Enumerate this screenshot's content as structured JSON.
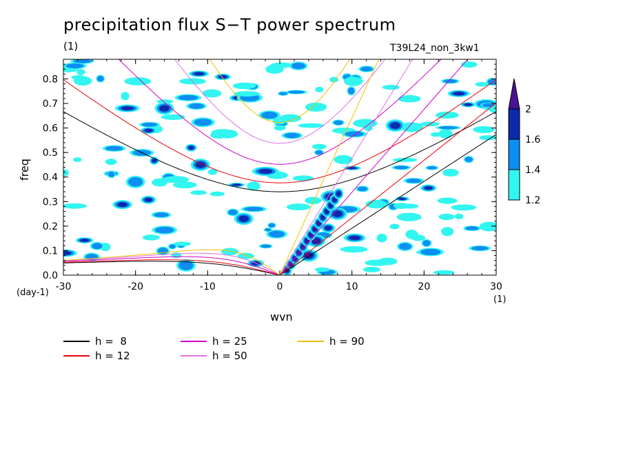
{
  "title": "precipitation flux S−T power spectrum",
  "units_top": "(1)",
  "run_label": "T39L24_non_3kw1",
  "x_units_label": "(1)",
  "y_units_label": "(day-1)",
  "chart_data": {
    "type": "heatmap",
    "xlabel": "wvn",
    "ylabel": "freq",
    "xlim": [
      -30,
      30
    ],
    "ylim": [
      0.0,
      0.88
    ],
    "x_ticks": [
      "-30",
      "-20",
      "-10",
      "0",
      "10",
      "20",
      "30"
    ],
    "y_ticks": [
      "0.0",
      "0.1",
      "0.2",
      "0.3",
      "0.4",
      "0.5",
      "0.6",
      "0.7",
      "0.8"
    ],
    "colorbar": {
      "levels": [
        1.2,
        1.4,
        1.6,
        2.0
      ],
      "tick_labels": [
        "1.2",
        "1.4",
        "1.6",
        "2"
      ],
      "colors": [
        "#33f5f0",
        "#0c8ef2",
        "#0a2aaa",
        "#4a1396"
      ]
    },
    "field": {
      "description_values": "Spectral power blobs; peaks along eastward Kelvin band (wvn 1-8, freq 0.0-0.35) exceed 2.0",
      "peaks": [
        {
          "wvn": 4,
          "freq": 0.08,
          "value": 2.0
        },
        {
          "wvn": 5,
          "freq": 0.14,
          "value": 2.0
        },
        {
          "wvn": 7,
          "freq": 0.32,
          "value": 2.0
        },
        {
          "wvn": 8,
          "freq": 0.25,
          "value": 1.7
        },
        {
          "wvn": -16,
          "freq": 0.68,
          "value": 1.7
        },
        {
          "wvn": 16,
          "freq": 0.61,
          "value": 1.7
        },
        {
          "wvn": -11,
          "freq": 0.45,
          "value": 1.6
        },
        {
          "wvn": -5,
          "freq": 0.23,
          "value": 1.6
        },
        {
          "wvn": -20,
          "freq": 0.38,
          "value": 1.5
        },
        {
          "wvn": -13,
          "freq": 0.04,
          "value": 1.5
        }
      ]
    },
    "dispersion_curves": {
      "equivalent_depths": [
        8,
        12,
        25,
        50,
        90
      ],
      "colors": [
        "#000000",
        "#e8000b",
        "#d000c4",
        "#e070e0",
        "#f0c000"
      ]
    },
    "legend": [
      {
        "label": "h =  8",
        "color": "#000000"
      },
      {
        "label": "h = 12",
        "color": "#e8000b"
      },
      {
        "label": "h = 25",
        "color": "#d000c4"
      },
      {
        "label": "h = 50",
        "color": "#e070e0"
      },
      {
        "label": "h = 90",
        "color": "#f0c000"
      }
    ]
  }
}
